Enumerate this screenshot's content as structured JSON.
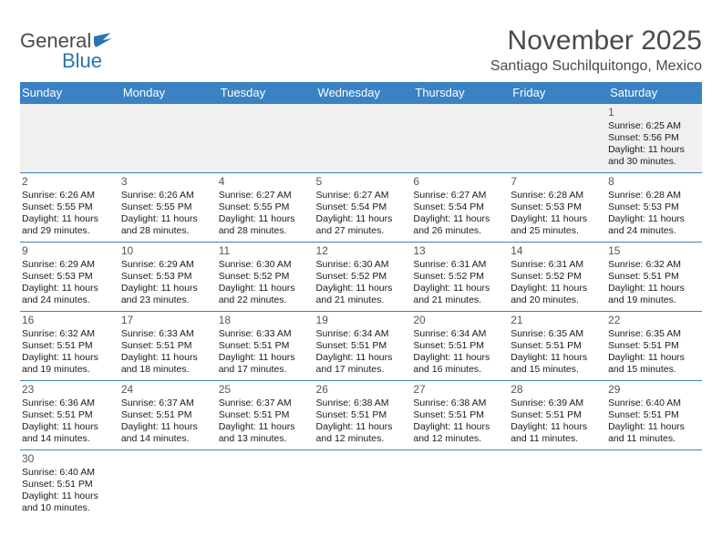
{
  "logo": {
    "text1": "General",
    "text2": "Blue"
  },
  "title": "November 2025",
  "location": "Santiago Suchilquitongo, Mexico",
  "colors": {
    "header_bg": "#3a82c4",
    "header_text": "#ffffff",
    "border": "#3a82c4",
    "empty_bg": "#f0f0f0",
    "body_text": "#1a1a1a",
    "title_text": "#4a4a4a"
  },
  "fonts": {
    "title_size": 30,
    "location_size": 16,
    "th_size": 13,
    "cell_size": 10.5,
    "daynum_size": 12
  },
  "weekdays": [
    "Sunday",
    "Monday",
    "Tuesday",
    "Wednesday",
    "Thursday",
    "Friday",
    "Saturday"
  ],
  "grid": [
    [
      null,
      null,
      null,
      null,
      null,
      null,
      {
        "n": "1",
        "sr": "Sunrise: 6:25 AM",
        "ss": "Sunset: 5:56 PM",
        "d1": "Daylight: 11 hours",
        "d2": "and 30 minutes."
      }
    ],
    [
      {
        "n": "2",
        "sr": "Sunrise: 6:26 AM",
        "ss": "Sunset: 5:55 PM",
        "d1": "Daylight: 11 hours",
        "d2": "and 29 minutes."
      },
      {
        "n": "3",
        "sr": "Sunrise: 6:26 AM",
        "ss": "Sunset: 5:55 PM",
        "d1": "Daylight: 11 hours",
        "d2": "and 28 minutes."
      },
      {
        "n": "4",
        "sr": "Sunrise: 6:27 AM",
        "ss": "Sunset: 5:55 PM",
        "d1": "Daylight: 11 hours",
        "d2": "and 28 minutes."
      },
      {
        "n": "5",
        "sr": "Sunrise: 6:27 AM",
        "ss": "Sunset: 5:54 PM",
        "d1": "Daylight: 11 hours",
        "d2": "and 27 minutes."
      },
      {
        "n": "6",
        "sr": "Sunrise: 6:27 AM",
        "ss": "Sunset: 5:54 PM",
        "d1": "Daylight: 11 hours",
        "d2": "and 26 minutes."
      },
      {
        "n": "7",
        "sr": "Sunrise: 6:28 AM",
        "ss": "Sunset: 5:53 PM",
        "d1": "Daylight: 11 hours",
        "d2": "and 25 minutes."
      },
      {
        "n": "8",
        "sr": "Sunrise: 6:28 AM",
        "ss": "Sunset: 5:53 PM",
        "d1": "Daylight: 11 hours",
        "d2": "and 24 minutes."
      }
    ],
    [
      {
        "n": "9",
        "sr": "Sunrise: 6:29 AM",
        "ss": "Sunset: 5:53 PM",
        "d1": "Daylight: 11 hours",
        "d2": "and 24 minutes."
      },
      {
        "n": "10",
        "sr": "Sunrise: 6:29 AM",
        "ss": "Sunset: 5:53 PM",
        "d1": "Daylight: 11 hours",
        "d2": "and 23 minutes."
      },
      {
        "n": "11",
        "sr": "Sunrise: 6:30 AM",
        "ss": "Sunset: 5:52 PM",
        "d1": "Daylight: 11 hours",
        "d2": "and 22 minutes."
      },
      {
        "n": "12",
        "sr": "Sunrise: 6:30 AM",
        "ss": "Sunset: 5:52 PM",
        "d1": "Daylight: 11 hours",
        "d2": "and 21 minutes."
      },
      {
        "n": "13",
        "sr": "Sunrise: 6:31 AM",
        "ss": "Sunset: 5:52 PM",
        "d1": "Daylight: 11 hours",
        "d2": "and 21 minutes."
      },
      {
        "n": "14",
        "sr": "Sunrise: 6:31 AM",
        "ss": "Sunset: 5:52 PM",
        "d1": "Daylight: 11 hours",
        "d2": "and 20 minutes."
      },
      {
        "n": "15",
        "sr": "Sunrise: 6:32 AM",
        "ss": "Sunset: 5:51 PM",
        "d1": "Daylight: 11 hours",
        "d2": "and 19 minutes."
      }
    ],
    [
      {
        "n": "16",
        "sr": "Sunrise: 6:32 AM",
        "ss": "Sunset: 5:51 PM",
        "d1": "Daylight: 11 hours",
        "d2": "and 19 minutes."
      },
      {
        "n": "17",
        "sr": "Sunrise: 6:33 AM",
        "ss": "Sunset: 5:51 PM",
        "d1": "Daylight: 11 hours",
        "d2": "and 18 minutes."
      },
      {
        "n": "18",
        "sr": "Sunrise: 6:33 AM",
        "ss": "Sunset: 5:51 PM",
        "d1": "Daylight: 11 hours",
        "d2": "and 17 minutes."
      },
      {
        "n": "19",
        "sr": "Sunrise: 6:34 AM",
        "ss": "Sunset: 5:51 PM",
        "d1": "Daylight: 11 hours",
        "d2": "and 17 minutes."
      },
      {
        "n": "20",
        "sr": "Sunrise: 6:34 AM",
        "ss": "Sunset: 5:51 PM",
        "d1": "Daylight: 11 hours",
        "d2": "and 16 minutes."
      },
      {
        "n": "21",
        "sr": "Sunrise: 6:35 AM",
        "ss": "Sunset: 5:51 PM",
        "d1": "Daylight: 11 hours",
        "d2": "and 15 minutes."
      },
      {
        "n": "22",
        "sr": "Sunrise: 6:35 AM",
        "ss": "Sunset: 5:51 PM",
        "d1": "Daylight: 11 hours",
        "d2": "and 15 minutes."
      }
    ],
    [
      {
        "n": "23",
        "sr": "Sunrise: 6:36 AM",
        "ss": "Sunset: 5:51 PM",
        "d1": "Daylight: 11 hours",
        "d2": "and 14 minutes."
      },
      {
        "n": "24",
        "sr": "Sunrise: 6:37 AM",
        "ss": "Sunset: 5:51 PM",
        "d1": "Daylight: 11 hours",
        "d2": "and 14 minutes."
      },
      {
        "n": "25",
        "sr": "Sunrise: 6:37 AM",
        "ss": "Sunset: 5:51 PM",
        "d1": "Daylight: 11 hours",
        "d2": "and 13 minutes."
      },
      {
        "n": "26",
        "sr": "Sunrise: 6:38 AM",
        "ss": "Sunset: 5:51 PM",
        "d1": "Daylight: 11 hours",
        "d2": "and 12 minutes."
      },
      {
        "n": "27",
        "sr": "Sunrise: 6:38 AM",
        "ss": "Sunset: 5:51 PM",
        "d1": "Daylight: 11 hours",
        "d2": "and 12 minutes."
      },
      {
        "n": "28",
        "sr": "Sunrise: 6:39 AM",
        "ss": "Sunset: 5:51 PM",
        "d1": "Daylight: 11 hours",
        "d2": "and 11 minutes."
      },
      {
        "n": "29",
        "sr": "Sunrise: 6:40 AM",
        "ss": "Sunset: 5:51 PM",
        "d1": "Daylight: 11 hours",
        "d2": "and 11 minutes."
      }
    ],
    [
      {
        "n": "30",
        "sr": "Sunrise: 6:40 AM",
        "ss": "Sunset: 5:51 PM",
        "d1": "Daylight: 11 hours",
        "d2": "and 10 minutes."
      },
      null,
      null,
      null,
      null,
      null,
      null
    ]
  ]
}
